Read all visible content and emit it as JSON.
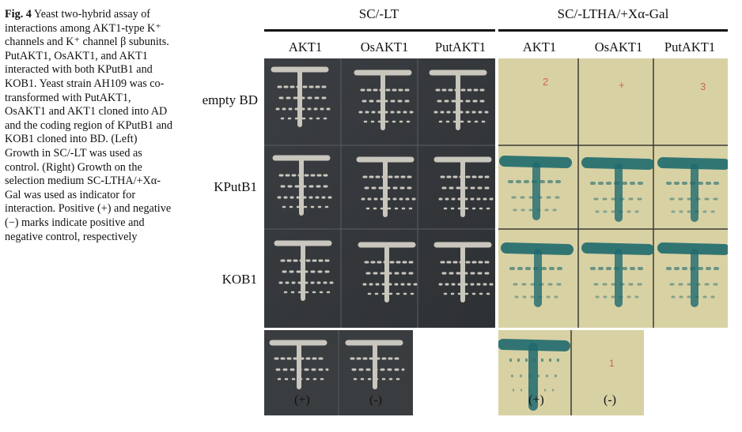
{
  "caption": {
    "label": "Fig. 4",
    "text": " Yeast two-hybrid assay of interactions among AKT1-type K⁺ channels and K⁺ channel β subunits. PutAKT1, OsAKT1, and AKT1 interacted with both KPutB1 and KOB1. Yeast strain AH109 was co-transformed with PutAKT1, OsAKT1 and AKT1 cloned into AD and the coding region of KPutB1 and KOB1 cloned into BD. (Left) Growth in SC/-LT was used as control. (Right) Growth on the selection medium SC-LTHA/+Xα-Gal was used as indicator for interaction. Positive (+) and negative (−) marks indicate positive and negative control, respectively"
  },
  "headers": {
    "left": "SC/-LT",
    "right": "SC/-LTHA/+Xα-Gal"
  },
  "columns_left": [
    "AKT1",
    "OsAKT1",
    "PutAKT1"
  ],
  "columns_right": [
    "AKT1",
    "OsAKT1",
    "PutAKT1"
  ],
  "rows": [
    "empty BD",
    "KPutB1",
    "KOB1"
  ],
  "controls": {
    "positive": "(+)",
    "negative": "(-)"
  },
  "colors": {
    "left_plate": "#3a3d40",
    "right_plate": "#d8d1a4",
    "colony_white": "#c9c6bd",
    "colony_blue": "#1f6a6e"
  }
}
